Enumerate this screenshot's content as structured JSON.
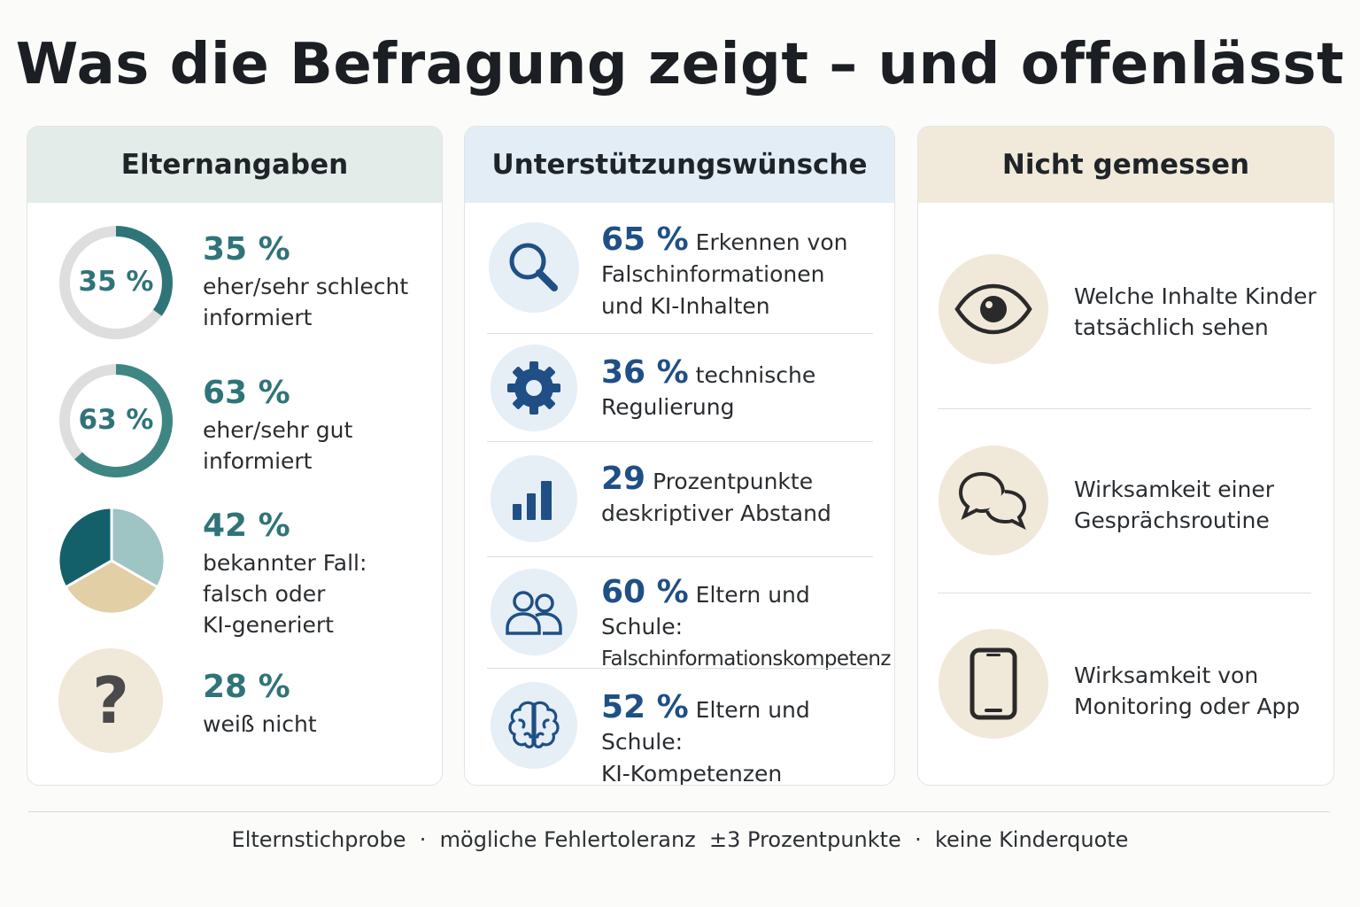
{
  "title": "Was die Befragung zeigt – und offenlässt",
  "columns": {
    "elternangaben": {
      "header": "Elternangaben",
      "items": [
        {
          "value": "35 %",
          "donut_label": "35 %",
          "line1": "eher/sehr schlecht",
          "line2": "informiert",
          "fraction": 0.35,
          "icon": "donut-chart-icon"
        },
        {
          "value": "63 %",
          "donut_label": "63 %",
          "line1": "eher/sehr gut",
          "line2": "informiert",
          "fraction": 0.63,
          "icon": "donut-chart-icon"
        },
        {
          "value": "42 %",
          "line1": "bekannter Fall:",
          "line2": "falsch oder",
          "line3": "KI-generiert",
          "icon": "pie-chart-icon"
        },
        {
          "value": "28 %",
          "line1": "weiß nicht",
          "icon": "question-mark-icon"
        }
      ]
    },
    "wuensche": {
      "header": "Unterstützungswünsche",
      "items": [
        {
          "value": "65 %",
          "text1": "Erkennen von",
          "line2": "Falschinformationen",
          "line3": "und KI-Inhalten",
          "icon": "magnifier-icon"
        },
        {
          "value": "36 %",
          "text1": "technische",
          "line2": "Regulierung",
          "icon": "gear-icon"
        },
        {
          "value": "29",
          "text1": "Prozentpunkte",
          "line2": "deskriptiver Abstand",
          "icon": "bar-chart-icon"
        },
        {
          "value": "60 %",
          "text1": "Eltern und Schule:",
          "line2": "Falschinformationskompetenz",
          "icon": "people-icon"
        },
        {
          "value": "52 %",
          "text1": "Eltern und Schule:",
          "line2": "KI-Kompetenzen",
          "icon": "brain-icon"
        }
      ]
    },
    "nicht_gemessen": {
      "header": "Nicht gemessen",
      "items": [
        {
          "line1": "Welche Inhalte Kinder",
          "line2": "tatsächlich sehen",
          "icon": "eye-icon"
        },
        {
          "line1": "Wirksamkeit einer",
          "line2": "Gesprächsroutine",
          "icon": "speech-bubbles-icon"
        },
        {
          "line1": "Wirksamkeit von",
          "line2": "Monitoring oder App",
          "icon": "smartphone-icon"
        }
      ]
    }
  },
  "footer": {
    "part1": "Elternstichprobe",
    "sep": "·",
    "part2": "mögliche Fehlertoleranz  ±3 Prozentpunkte",
    "part3": "keine Kinderquote"
  },
  "colors": {
    "teal": "#2f7478",
    "teal_dark": "#14606a",
    "teal_light": "#9ec4c3",
    "beige": "#e3cfa5",
    "blue": "#1f4f85",
    "icon_bg_blue": "#e6eef6",
    "icon_bg_beige": "#f0e8d9"
  }
}
